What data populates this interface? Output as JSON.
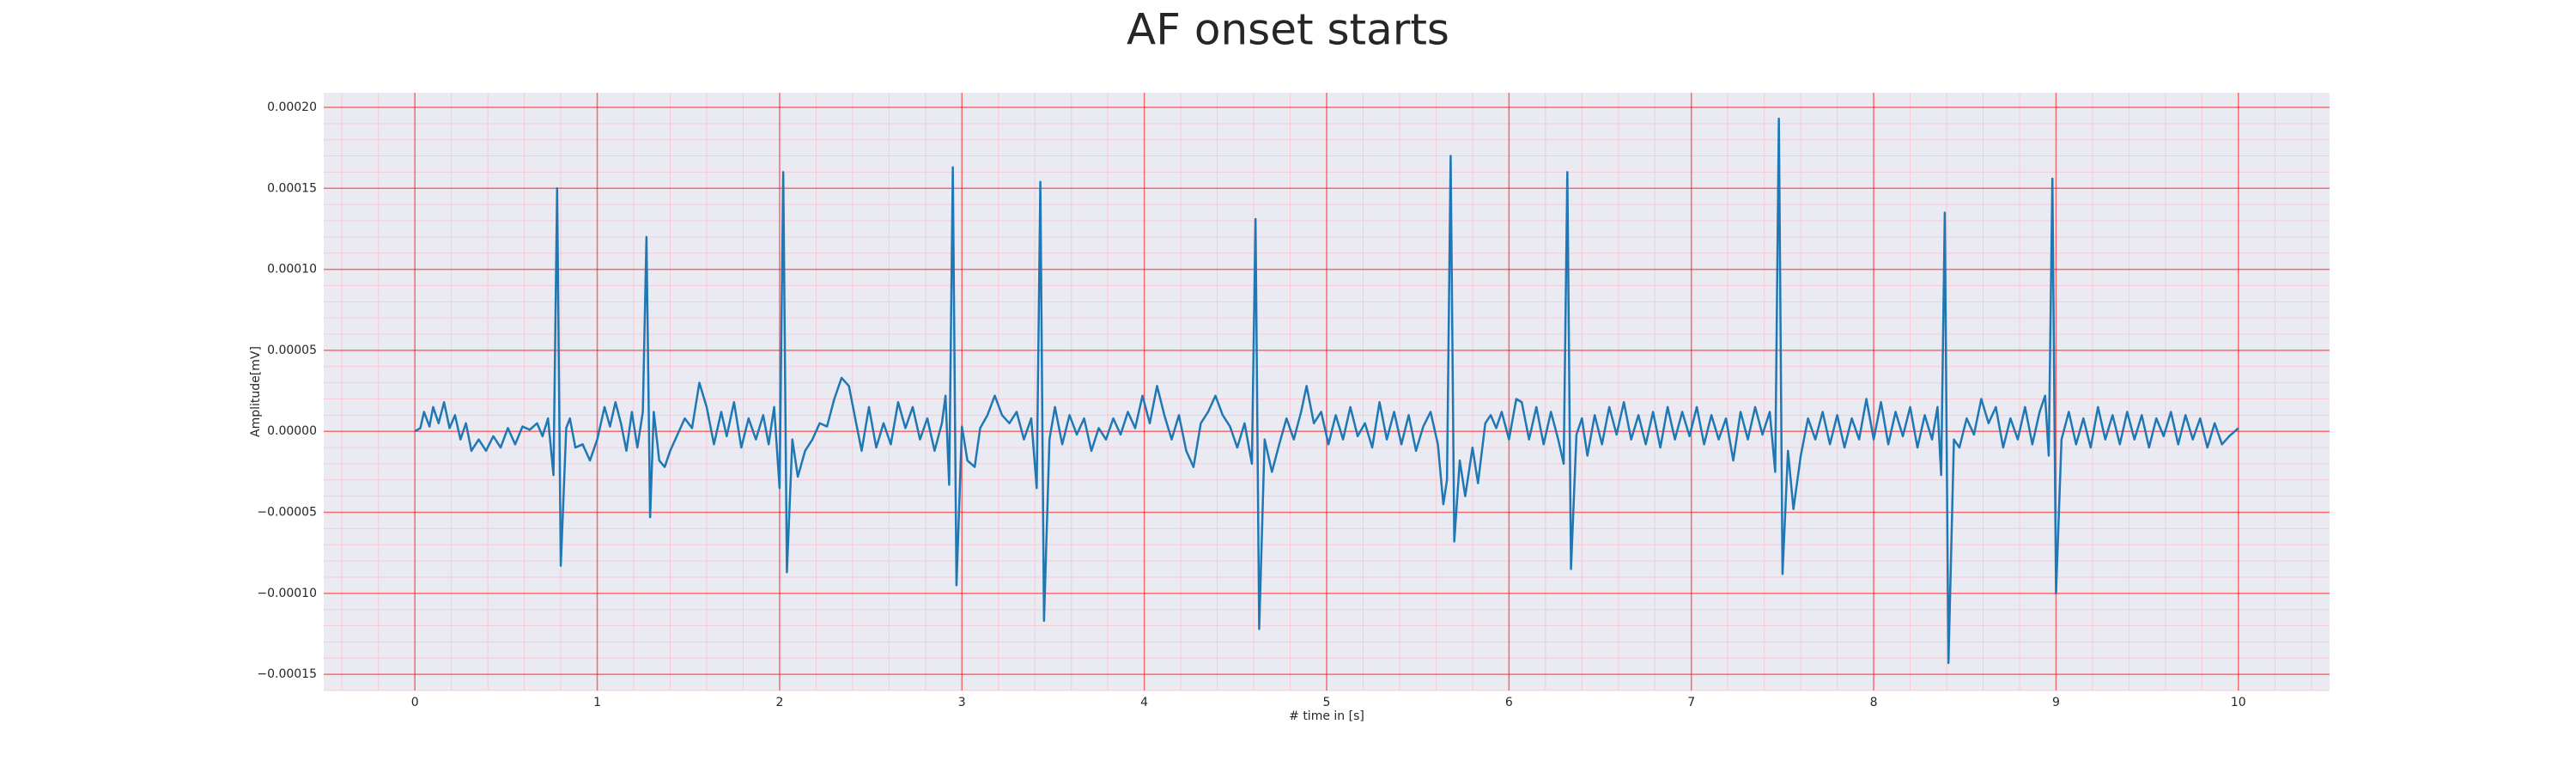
{
  "chart_data": {
    "type": "line",
    "title": "AF onset starts",
    "x_label": "# time in [s]",
    "y_label": "Amplitude[mV]",
    "color": "#1f77b4",
    "grid": true,
    "minor_grid": true,
    "grid_color": "#ff0000",
    "minor_grid_color": "#ffb6c1",
    "background": "#eaeaf2",
    "xlim": [
      -0.5,
      10.5
    ],
    "ylim": [
      -0.00016,
      0.000209
    ],
    "xticks": [
      0,
      1,
      2,
      3,
      4,
      5,
      6,
      7,
      8,
      9,
      10
    ],
    "yticks": [
      {
        "value": -0.00015,
        "label": "−0.00015"
      },
      {
        "value": -0.0001,
        "label": "−0.00010"
      },
      {
        "value": -5e-05,
        "label": "−0.00005"
      },
      {
        "value": 0,
        "label": "0.00000"
      },
      {
        "value": 5e-05,
        "label": "0.00005"
      },
      {
        "value": 0.0001,
        "label": "0.00010"
      },
      {
        "value": 0.00015,
        "label": "0.00015"
      },
      {
        "value": 0.0002,
        "label": "0.00020"
      }
    ],
    "x": [
      0,
      0.03,
      0.05,
      0.08,
      0.1,
      0.13,
      0.16,
      0.19,
      0.22,
      0.25,
      0.28,
      0.31,
      0.35,
      0.39,
      0.43,
      0.47,
      0.51,
      0.55,
      0.59,
      0.63,
      0.67,
      0.7,
      0.73,
      0.76,
      0.78,
      0.8,
      0.83,
      0.85,
      0.88,
      0.92,
      0.96,
      1.0,
      1.04,
      1.07,
      1.1,
      1.13,
      1.16,
      1.19,
      1.22,
      1.25,
      1.27,
      1.29,
      1.31,
      1.34,
      1.37,
      1.4,
      1.44,
      1.48,
      1.52,
      1.56,
      1.6,
      1.64,
      1.68,
      1.71,
      1.75,
      1.79,
      1.83,
      1.87,
      1.91,
      1.94,
      1.97,
      2.0,
      2.02,
      2.04,
      2.07,
      2.1,
      2.14,
      2.18,
      2.22,
      2.26,
      2.3,
      2.34,
      2.38,
      2.42,
      2.45,
      2.49,
      2.53,
      2.57,
      2.61,
      2.65,
      2.69,
      2.73,
      2.77,
      2.81,
      2.85,
      2.89,
      2.91,
      2.93,
      2.95,
      2.97,
      3.0,
      3.03,
      3.07,
      3.1,
      3.14,
      3.18,
      3.22,
      3.26,
      3.3,
      3.34,
      3.38,
      3.41,
      3.43,
      3.45,
      3.48,
      3.51,
      3.55,
      3.59,
      3.63,
      3.67,
      3.71,
      3.75,
      3.79,
      3.83,
      3.87,
      3.91,
      3.95,
      3.99,
      4.03,
      4.07,
      4.11,
      4.15,
      4.19,
      4.23,
      4.27,
      4.31,
      4.35,
      4.39,
      4.43,
      4.47,
      4.51,
      4.55,
      4.59,
      4.61,
      4.63,
      4.66,
      4.7,
      4.74,
      4.78,
      4.82,
      4.86,
      4.89,
      4.93,
      4.97,
      5.01,
      5.05,
      5.09,
      5.13,
      5.17,
      5.21,
      5.25,
      5.29,
      5.33,
      5.37,
      5.41,
      5.45,
      5.49,
      5.53,
      5.57,
      5.61,
      5.64,
      5.66,
      5.68,
      5.7,
      5.73,
      5.76,
      5.8,
      5.83,
      5.87,
      5.9,
      5.93,
      5.96,
      6.0,
      6.04,
      6.07,
      6.11,
      6.15,
      6.19,
      6.23,
      6.27,
      6.3,
      6.32,
      6.34,
      6.37,
      6.4,
      6.43,
      6.47,
      6.51,
      6.55,
      6.59,
      6.63,
      6.67,
      6.71,
      6.75,
      6.79,
      6.83,
      6.87,
      6.91,
      6.95,
      6.99,
      7.03,
      7.07,
      7.11,
      7.15,
      7.19,
      7.23,
      7.27,
      7.31,
      7.35,
      7.39,
      7.43,
      7.46,
      7.48,
      7.5,
      7.53,
      7.56,
      7.6,
      7.64,
      7.68,
      7.72,
      7.76,
      7.8,
      7.84,
      7.88,
      7.92,
      7.96,
      8.0,
      8.04,
      8.08,
      8.12,
      8.16,
      8.2,
      8.24,
      8.28,
      8.32,
      8.35,
      8.37,
      8.39,
      8.41,
      8.44,
      8.47,
      8.51,
      8.55,
      8.59,
      8.63,
      8.67,
      8.71,
      8.75,
      8.79,
      8.83,
      8.87,
      8.91,
      8.94,
      8.96,
      8.98,
      9.0,
      9.03,
      9.07,
      9.11,
      9.15,
      9.19,
      9.23,
      9.27,
      9.31,
      9.35,
      9.39,
      9.43,
      9.47,
      9.51,
      9.55,
      9.59,
      9.63,
      9.67,
      9.71,
      9.75,
      9.79,
      9.83,
      9.87,
      9.91,
      9.95,
      10.0
    ],
    "values": [
      0,
      2e-06,
      1.2e-05,
      3e-06,
      1.5e-05,
      5e-06,
      1.8e-05,
      2e-06,
      1e-05,
      -5e-06,
      5e-06,
      -1.2e-05,
      -5e-06,
      -1.2e-05,
      -3e-06,
      -1e-05,
      2e-06,
      -8e-06,
      3e-06,
      1e-06,
      5e-06,
      -3e-06,
      8e-06,
      -2.7e-05,
      0.00015,
      -8.3e-05,
      2e-06,
      8e-06,
      -1e-05,
      -8e-06,
      -1.8e-05,
      -5e-06,
      1.5e-05,
      3e-06,
      1.8e-05,
      5e-06,
      -1.2e-05,
      1.2e-05,
      -1e-05,
      1.2e-05,
      0.00012,
      -5.3e-05,
      1.2e-05,
      -1.8e-05,
      -2.2e-05,
      -1.2e-05,
      -2e-06,
      8e-06,
      2e-06,
      3e-05,
      1.5e-05,
      -8e-06,
      1.2e-05,
      -3e-06,
      1.8e-05,
      -1e-05,
      8e-06,
      -5e-06,
      1e-05,
      -8e-06,
      1.5e-05,
      -3.5e-05,
      0.00016,
      -8.7e-05,
      -5e-06,
      -2.8e-05,
      -1.2e-05,
      -5e-06,
      5e-06,
      3e-06,
      2e-05,
      3.3e-05,
      2.8e-05,
      5e-06,
      -1.2e-05,
      1.5e-05,
      -1e-05,
      5e-06,
      -8e-06,
      1.8e-05,
      2e-06,
      1.5e-05,
      -5e-06,
      8e-06,
      -1.2e-05,
      5e-06,
      2.2e-05,
      -3.3e-05,
      0.000163,
      -9.5e-05,
      3e-06,
      -1.8e-05,
      -2.2e-05,
      2e-06,
      1e-05,
      2.2e-05,
      1e-05,
      5e-06,
      1.2e-05,
      -5e-06,
      8e-06,
      -3.5e-05,
      0.000154,
      -0.000117,
      -5e-06,
      1.5e-05,
      -8e-06,
      1e-05,
      -2e-06,
      8e-06,
      -1.2e-05,
      2e-06,
      -5e-06,
      8e-06,
      -2e-06,
      1.2e-05,
      2e-06,
      2.2e-05,
      5e-06,
      2.8e-05,
      1e-05,
      -5e-06,
      1e-05,
      -1.2e-05,
      -2.2e-05,
      5e-06,
      1.2e-05,
      2.2e-05,
      1e-05,
      3e-06,
      -1e-05,
      5e-06,
      -2e-05,
      0.000131,
      -0.000122,
      -5e-06,
      -2.5e-05,
      -8e-06,
      8e-06,
      -5e-06,
      1.2e-05,
      2.8e-05,
      5e-06,
      1.2e-05,
      -8e-06,
      1e-05,
      -5e-06,
      1.5e-05,
      -3e-06,
      5e-06,
      -1e-05,
      1.8e-05,
      -5e-06,
      1.2e-05,
      -8e-06,
      1e-05,
      -1.2e-05,
      3e-06,
      1.2e-05,
      -8e-06,
      -4.5e-05,
      -3e-05,
      0.00017,
      -6.8e-05,
      -1.8e-05,
      -4e-05,
      -1e-05,
      -3.2e-05,
      5e-06,
      1e-05,
      2e-06,
      1.2e-05,
      -5e-06,
      2e-05,
      1.8e-05,
      -5e-06,
      1.5e-05,
      -8e-06,
      1.2e-05,
      -5e-06,
      -2e-05,
      0.00016,
      -8.5e-05,
      -2e-06,
      8e-06,
      -1.5e-05,
      1e-05,
      -8e-06,
      1.5e-05,
      -2e-06,
      1.8e-05,
      -5e-06,
      1e-05,
      -8e-06,
      1.2e-05,
      -1e-05,
      1.5e-05,
      -5e-06,
      1.2e-05,
      -3e-06,
      1.5e-05,
      -8e-06,
      1e-05,
      -5e-06,
      8e-06,
      -1.8e-05,
      1.2e-05,
      -5e-06,
      1.5e-05,
      -2e-06,
      1.2e-05,
      -2.5e-05,
      0.000193,
      -8.8e-05,
      -1.2e-05,
      -4.8e-05,
      -1.5e-05,
      8e-06,
      -5e-06,
      1.2e-05,
      -8e-06,
      1e-05,
      -1e-05,
      8e-06,
      -5e-06,
      2e-05,
      -5e-06,
      1.8e-05,
      -8e-06,
      1.2e-05,
      -3e-06,
      1.5e-05,
      -1e-05,
      1e-05,
      -5e-06,
      1.5e-05,
      -2.7e-05,
      0.000135,
      -0.000143,
      -5e-06,
      -1e-05,
      8e-06,
      -2e-06,
      2e-05,
      5e-06,
      1.5e-05,
      -1e-05,
      8e-06,
      -5e-06,
      1.5e-05,
      -8e-06,
      1.2e-05,
      2.2e-05,
      -1.5e-05,
      0.000156,
      -0.0001,
      -5e-06,
      1.2e-05,
      -8e-06,
      8e-06,
      -1e-05,
      1.5e-05,
      -5e-06,
      1e-05,
      -8e-06,
      1.2e-05,
      -5e-06,
      1e-05,
      -1e-05,
      8e-06,
      -3e-06,
      1.2e-05,
      -8e-06,
      1e-05,
      -5e-06,
      8e-06,
      -1e-05,
      5e-06,
      -8e-06,
      -3e-06,
      2e-06
    ]
  }
}
